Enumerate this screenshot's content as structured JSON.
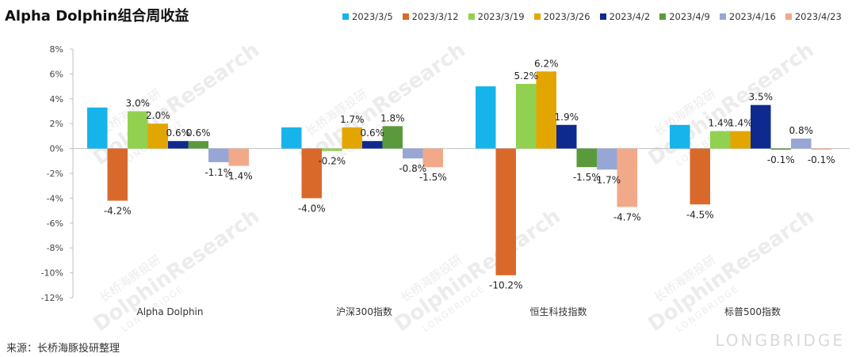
{
  "title": "Alpha Dolphin组合周收益",
  "source": "来源：长桥海豚投研整理",
  "watermark": {
    "line1": "长桥海豚投研",
    "line2": "DolphinResearch",
    "line3": "LONGBRIDGE",
    "brand": "LONGBRIDGE"
  },
  "chart_data": {
    "type": "bar",
    "title": "Alpha Dolphin组合周收益",
    "categories": [
      "Alpha Dolphin",
      "沪深300指数",
      "恒生科技指数",
      "标普500指数"
    ],
    "ylim": [
      -12,
      8
    ],
    "yticks": [
      -12,
      -10,
      -8,
      -6,
      -4,
      -2,
      0,
      2,
      4,
      6,
      8
    ],
    "ytick_labels": [
      "-12%",
      "-10%",
      "-8%",
      "-6%",
      "-4%",
      "-2%",
      "0%",
      "2%",
      "4%",
      "6%",
      "8%"
    ],
    "grid": false,
    "legend": "top",
    "unit": "%",
    "series": [
      {
        "name": "2023/3/5",
        "color": "#17b4ec",
        "values": [
          3.3,
          1.7,
          5.0,
          1.9
        ],
        "labels": [
          "",
          "",
          "",
          ""
        ]
      },
      {
        "name": "2023/3/12",
        "color": "#d9692b",
        "values": [
          -4.2,
          -4.0,
          -10.2,
          -4.5
        ],
        "labels": [
          "-4.2%",
          "-4.0%",
          "-10.2%",
          "-4.5%"
        ]
      },
      {
        "name": "2023/3/19",
        "color": "#92d050",
        "values": [
          3.0,
          -0.2,
          5.2,
          1.4
        ],
        "labels": [
          "3.0%",
          "-0.2%",
          "5.2%",
          "1.4%"
        ]
      },
      {
        "name": "2023/3/26",
        "color": "#e3a600",
        "values": [
          2.0,
          1.7,
          6.2,
          1.4
        ],
        "labels": [
          "2.0%",
          "1.7%",
          "6.2%",
          "1.4%"
        ]
      },
      {
        "name": "2023/4/2",
        "color": "#0f2a8f",
        "values": [
          0.6,
          0.6,
          1.9,
          3.5
        ],
        "labels": [
          "0.6%",
          "0.6%",
          "1.9%",
          "3.5%"
        ]
      },
      {
        "name": "2023/4/9",
        "color": "#5b9a3c",
        "values": [
          0.6,
          1.8,
          -1.5,
          -0.1
        ],
        "labels": [
          "0.6%",
          "1.8%",
          "-1.5%",
          "-0.1%"
        ]
      },
      {
        "name": "2023/4/16",
        "color": "#98a6d6",
        "values": [
          -1.1,
          -0.8,
          -1.7,
          0.8
        ],
        "labels": [
          "-1.1%",
          "-0.8%",
          "-1.7%",
          "0.8%"
        ]
      },
      {
        "name": "2023/4/23",
        "color": "#f2a98a",
        "values": [
          -1.4,
          -1.5,
          -4.7,
          -0.1
        ],
        "labels": [
          "-1.4%",
          "-1.5%",
          "-4.7%",
          "-0.1%"
        ]
      }
    ]
  }
}
